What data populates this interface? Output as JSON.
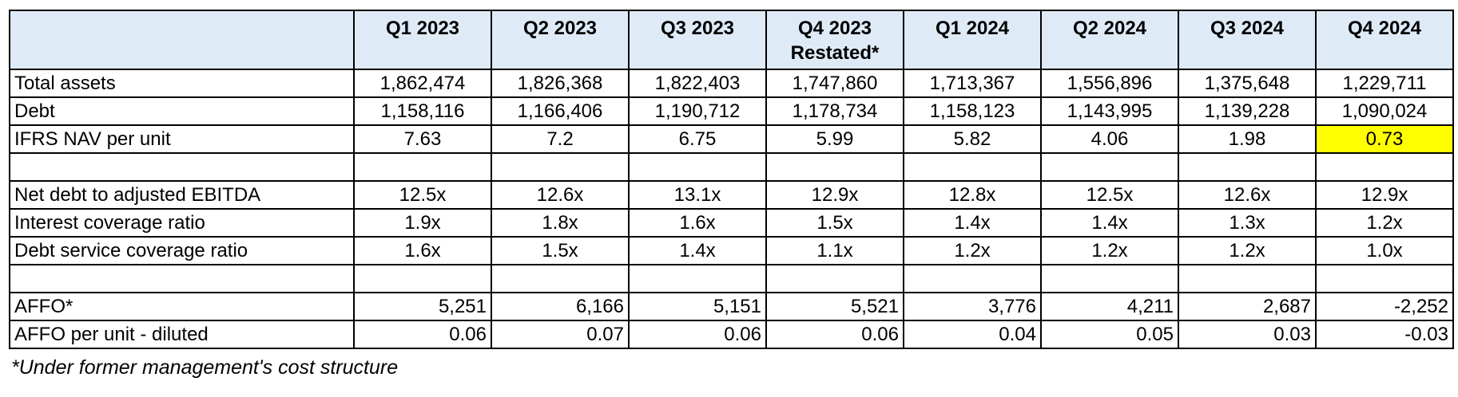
{
  "table": {
    "corner_label": "",
    "columns": [
      {
        "line1": "Q1 2023",
        "line2": ""
      },
      {
        "line1": "Q2 2023",
        "line2": ""
      },
      {
        "line1": "Q3 2023",
        "line2": ""
      },
      {
        "line1": "Q4 2023",
        "line2": "Restated*"
      },
      {
        "line1": "Q1 2024",
        "line2": ""
      },
      {
        "line1": "Q2 2024",
        "line2": ""
      },
      {
        "line1": "Q3 2024",
        "line2": ""
      },
      {
        "line1": "Q4 2024",
        "line2": ""
      }
    ],
    "rows": [
      {
        "label": "Total assets",
        "align": "center",
        "empty": false,
        "values": [
          "1,862,474",
          "1,826,368",
          "1,822,403",
          "1,747,860",
          "1,713,367",
          "1,556,896",
          "1,375,648",
          "1,229,711"
        ]
      },
      {
        "label": "Debt",
        "align": "center",
        "empty": false,
        "values": [
          "1,158,116",
          "1,166,406",
          "1,190,712",
          "1,178,734",
          "1,158,123",
          "1,143,995",
          "1,139,228",
          "1,090,024"
        ]
      },
      {
        "label": "IFRS NAV per unit",
        "align": "center",
        "empty": false,
        "highlight_col": 7,
        "values": [
          "7.63",
          "7.2",
          "6.75",
          "5.99",
          "5.82",
          "4.06",
          "1.98",
          "0.73"
        ]
      },
      {
        "label": "",
        "align": "center",
        "empty": true,
        "values": [
          "",
          "",
          "",
          "",
          "",
          "",
          "",
          ""
        ]
      },
      {
        "label": "Net debt to adjusted EBITDA",
        "align": "center",
        "empty": false,
        "values": [
          "12.5x",
          "12.6x",
          "13.1x",
          "12.9x",
          "12.8x",
          "12.5x",
          "12.6x",
          "12.9x"
        ]
      },
      {
        "label": "Interest coverage ratio",
        "align": "center",
        "empty": false,
        "values": [
          "1.9x",
          "1.8x",
          "1.6x",
          "1.5x",
          "1.4x",
          "1.4x",
          "1.3x",
          "1.2x"
        ]
      },
      {
        "label": "Debt service coverage ratio",
        "align": "center",
        "empty": false,
        "values": [
          "1.6x",
          "1.5x",
          "1.4x",
          "1.1x",
          "1.2x",
          "1.2x",
          "1.2x",
          "1.0x"
        ]
      },
      {
        "label": "",
        "align": "center",
        "empty": true,
        "values": [
          "",
          "",
          "",
          "",
          "",
          "",
          "",
          ""
        ]
      },
      {
        "label": "AFFO*",
        "align": "right",
        "empty": false,
        "values": [
          "5,251",
          "6,166",
          "5,151",
          "5,521",
          "3,776",
          "4,211",
          "2,687",
          "-2,252"
        ]
      },
      {
        "label": "AFFO per unit - diluted",
        "align": "right",
        "empty": false,
        "values": [
          "0.06",
          "0.07",
          "0.06",
          "0.06",
          "0.04",
          "0.05",
          "0.03",
          "-0.03"
        ]
      }
    ]
  },
  "footnote": "*Under former management's cost structure",
  "colors": {
    "header_fill": "#DEEBF7",
    "highlight": "#FFFF00",
    "border": "#000000"
  }
}
